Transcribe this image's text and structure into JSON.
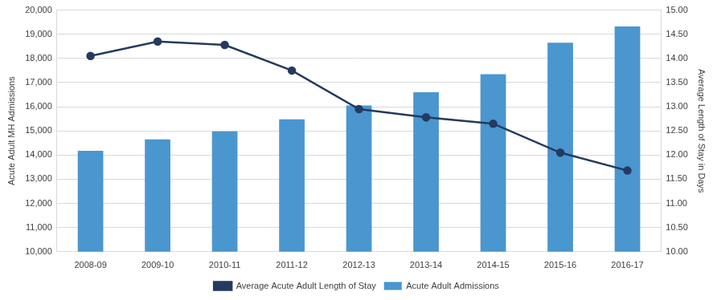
{
  "chart_data": {
    "type": "bar",
    "categories": [
      "2008-09",
      "2009-10",
      "2010-11",
      "2011-12",
      "2012-13",
      "2013-14",
      "2014-15",
      "2015-16",
      "2016-17"
    ],
    "series": [
      {
        "name": "Acute Adult Admissions",
        "type": "bar",
        "color": "#4a96cf",
        "axis": "y",
        "values": [
          14180,
          14650,
          14980,
          15480,
          16050,
          16600,
          17350,
          18650,
          19320
        ]
      },
      {
        "name": "Average Acute Adult Length of Stay",
        "type": "line",
        "color": "#253a5e",
        "axis": "y2",
        "marker": "circle",
        "values": [
          14.05,
          14.35,
          14.28,
          13.75,
          12.95,
          12.78,
          12.65,
          12.05,
          11.68
        ]
      }
    ],
    "y_label": "Acute Adult MH Admissions",
    "y2_label": "Average Length of Stay in Days",
    "ylim": [
      10000,
      20000
    ],
    "yticks": [
      {
        "value": 10000,
        "label": "10,000"
      },
      {
        "value": 11000,
        "label": "11,000"
      },
      {
        "value": 12000,
        "label": "12,000"
      },
      {
        "value": 13000,
        "label": "13,000"
      },
      {
        "value": 14000,
        "label": "14,000"
      },
      {
        "value": 15000,
        "label": "15,000"
      },
      {
        "value": 16000,
        "label": "16,000"
      },
      {
        "value": 17000,
        "label": "17,000"
      },
      {
        "value": 18000,
        "label": "18,000"
      },
      {
        "value": 19000,
        "label": "19,000"
      },
      {
        "value": 20000,
        "label": "20,000"
      }
    ],
    "y2lim": [
      10,
      15
    ],
    "y2ticks": [
      {
        "value": 10,
        "label": "10.00"
      },
      {
        "value": 10.5,
        "label": "10.50"
      },
      {
        "value": 11,
        "label": "11.00"
      },
      {
        "value": 11.5,
        "label": "11.50"
      },
      {
        "value": 12,
        "label": "12.00"
      },
      {
        "value": 12.5,
        "label": "12.50"
      },
      {
        "value": 13,
        "label": "13.00"
      },
      {
        "value": 13.5,
        "label": "13.50"
      },
      {
        "value": 14,
        "label": "14.00"
      },
      {
        "value": 14.5,
        "label": "14.50"
      },
      {
        "value": 15,
        "label": "15.00"
      }
    ],
    "grid": true,
    "legend": "bottom"
  }
}
